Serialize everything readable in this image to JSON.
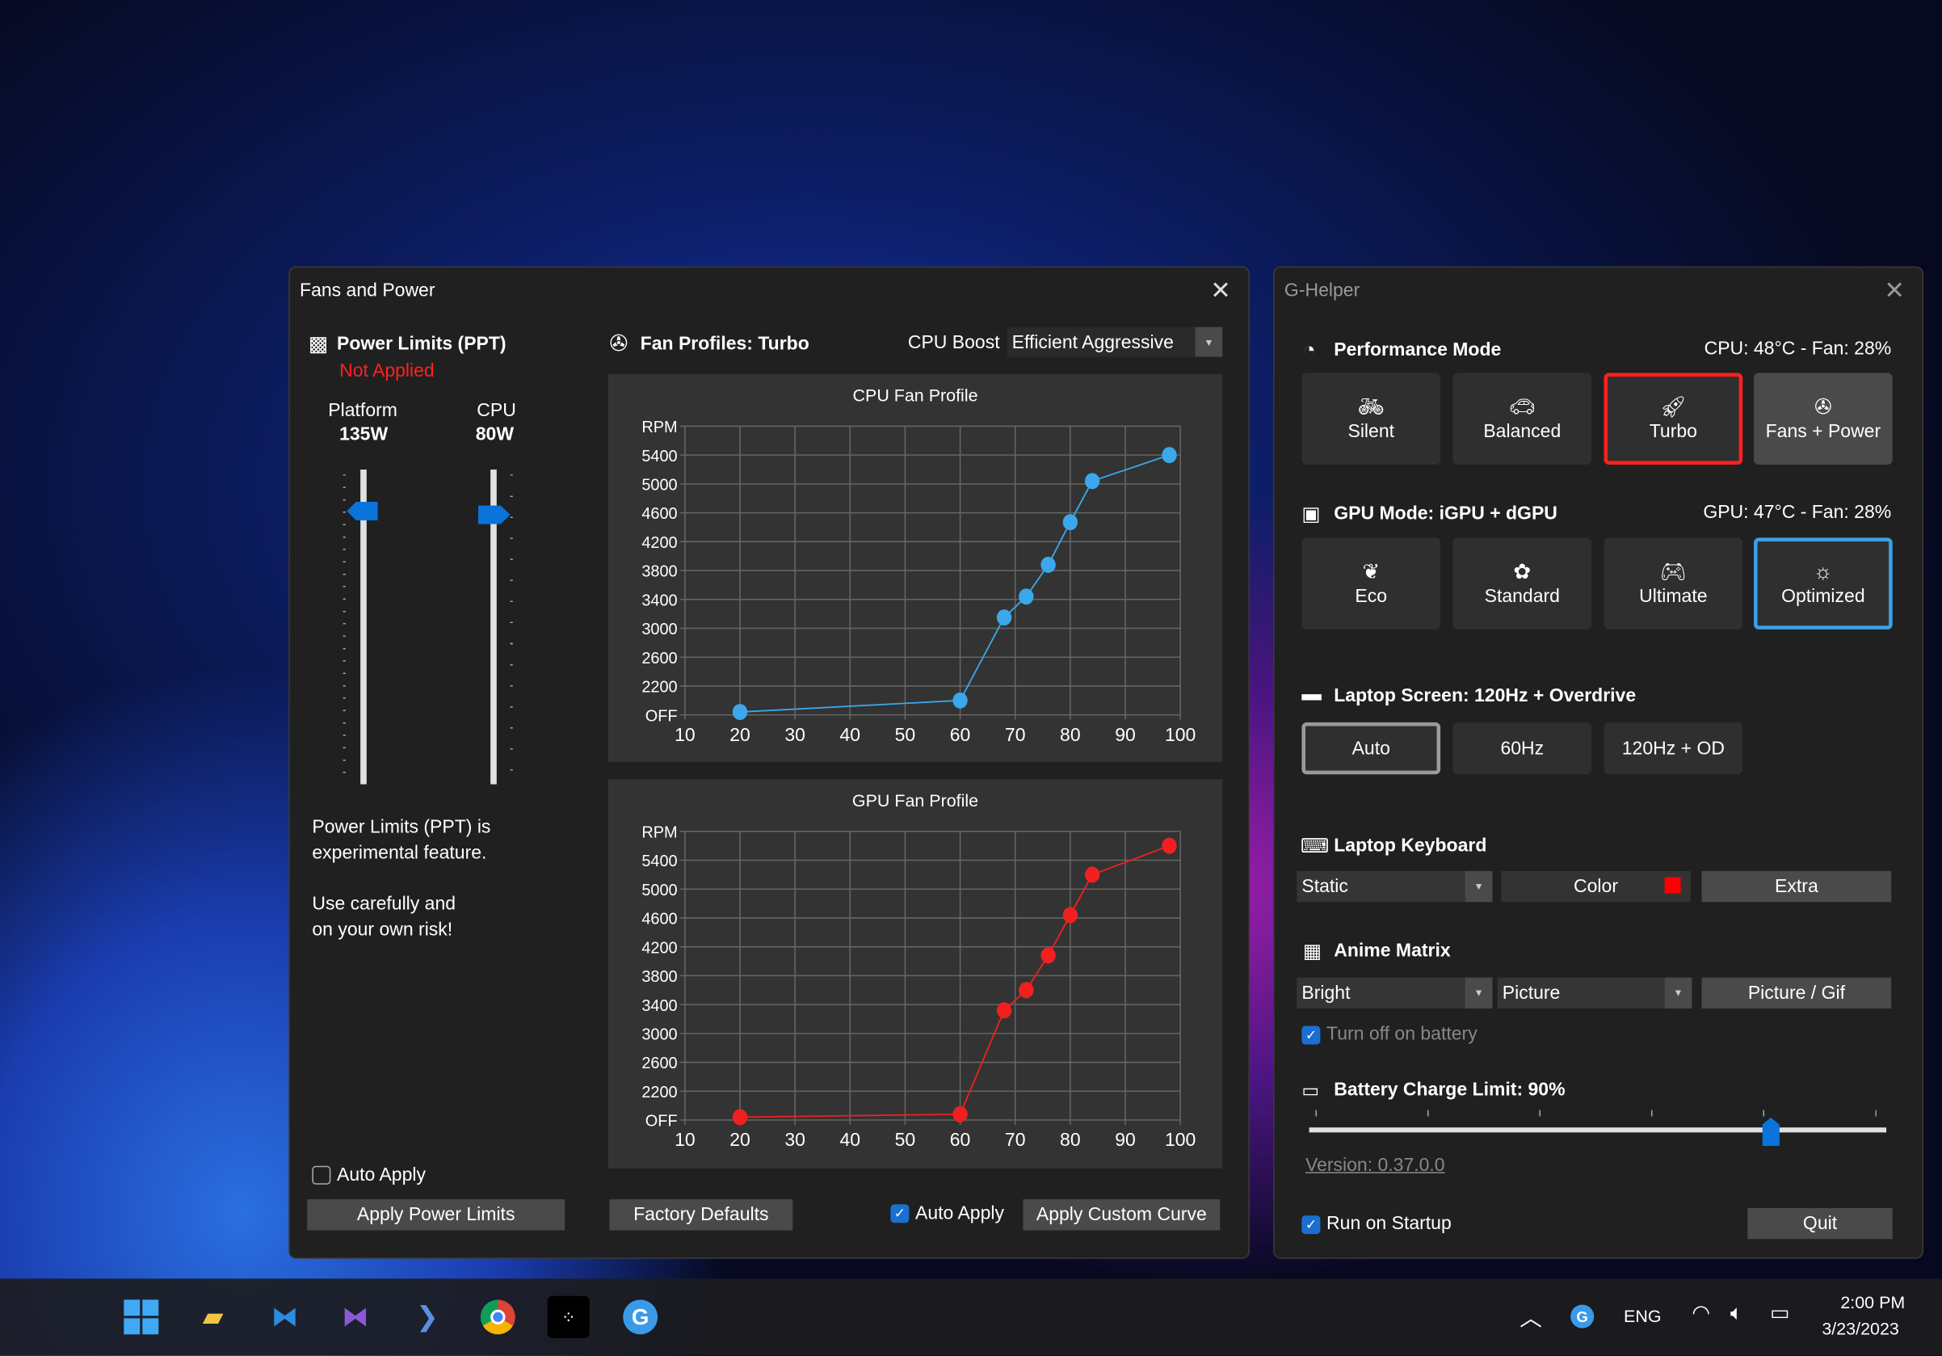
{
  "fans_window": {
    "title": "Fans and Power",
    "power": {
      "heading": "Power Limits (PPT)",
      "status": "Not Applied",
      "platform_label": "Platform",
      "platform_value": "135W",
      "cpu_label": "CPU",
      "cpu_value": "80W",
      "note1a": "Power Limits (PPT) is",
      "note1b": "experimental feature.",
      "note2a": "Use carefully and",
      "note2b": "on your own risk!",
      "auto_apply": "Auto Apply",
      "auto_apply_checked": false,
      "apply_button": "Apply Power Limits"
    },
    "fans": {
      "heading": "Fan Profiles: Turbo",
      "cpu_boost_label": "CPU Boost",
      "cpu_boost_value": "Efficient Aggressive",
      "factory_defaults": "Factory Defaults",
      "auto_apply": "Auto Apply",
      "auto_apply_checked": true,
      "apply_curve": "Apply Custom Curve"
    }
  },
  "chart_data": [
    {
      "type": "line",
      "title": "CPU Fan Profile",
      "ylabel": "RPM",
      "color": "#3aa8ea",
      "x": [
        20,
        60,
        68,
        72,
        76,
        80,
        84,
        98
      ],
      "y": [
        1840,
        2000,
        3150,
        3440,
        3880,
        4470,
        5040,
        5400
      ],
      "xlim": [
        10,
        100
      ],
      "xticks": [
        "10",
        "20",
        "30",
        "40",
        "50",
        "60",
        "70",
        "80",
        "90",
        "100"
      ],
      "ylim": [
        1800,
        5800
      ],
      "yticks": [
        "OFF",
        "2200",
        "2600",
        "3000",
        "3400",
        "3800",
        "4200",
        "4600",
        "5000",
        "5400",
        "RPM"
      ],
      "grid": true
    },
    {
      "type": "line",
      "title": "GPU Fan Profile",
      "ylabel": "RPM",
      "color": "#f02020",
      "x": [
        20,
        60,
        68,
        72,
        76,
        80,
        84,
        98
      ],
      "y": [
        1840,
        1880,
        3320,
        3600,
        4080,
        4640,
        5200,
        5600
      ],
      "xlim": [
        10,
        100
      ],
      "xticks": [
        "10",
        "20",
        "30",
        "40",
        "50",
        "60",
        "70",
        "80",
        "90",
        "100"
      ],
      "ylim": [
        1800,
        5800
      ],
      "yticks": [
        "OFF",
        "2200",
        "2600",
        "3000",
        "3400",
        "3800",
        "4200",
        "4600",
        "5000",
        "5400",
        "RPM"
      ],
      "grid": true
    }
  ],
  "ghelper": {
    "title": "G-Helper",
    "perf": {
      "heading": "Performance Mode",
      "stats": "CPU: 48°C -  Fan: 28%",
      "modes": [
        {
          "label": "Silent",
          "icon": "bicycle-icon"
        },
        {
          "label": "Balanced",
          "icon": "car-icon"
        },
        {
          "label": "Turbo",
          "icon": "rocket-icon"
        },
        {
          "label": "Fans + Power",
          "icon": "fan-icon"
        }
      ],
      "selected": "Turbo",
      "accent": "#ff2020"
    },
    "gpu": {
      "heading": "GPU Mode: iGPU + dGPU",
      "stats": "GPU: 47°C -  Fan: 28%",
      "modes": [
        {
          "label": "Eco",
          "icon": "leaf-icon"
        },
        {
          "label": "Standard",
          "icon": "flower-icon"
        },
        {
          "label": "Ultimate",
          "icon": "gamepad-icon"
        },
        {
          "label": "Optimized",
          "icon": "bulb-gear-icon"
        }
      ],
      "selected": "Optimized",
      "accent": "#3aa0e8"
    },
    "screen": {
      "heading": "Laptop Screen: 120Hz + Overdrive",
      "options": [
        "Auto",
        "60Hz",
        "120Hz + OD"
      ],
      "selected": "Auto"
    },
    "keyboard": {
      "heading": "Laptop Keyboard",
      "mode": "Static",
      "color_label": "Color",
      "color": "#ff0000",
      "extra": "Extra"
    },
    "matrix": {
      "heading": "Anime Matrix",
      "brightness": "Bright",
      "mode": "Picture",
      "picture_button": "Picture / Gif",
      "turn_off_battery": "Turn off on battery",
      "turn_off_checked": true
    },
    "battery": {
      "heading": "Battery Charge Limit: 90%",
      "limit_percent": 90,
      "range": [
        50,
        100
      ]
    },
    "version": "Version: 0.37.0.0",
    "run_on_startup": "Run on Startup",
    "run_on_startup_checked": true,
    "quit": "Quit"
  },
  "taskbar": {
    "apps": [
      "windows-start-icon",
      "file-explorer-icon",
      "vscode-icon",
      "visual-studio-icon",
      "powershell-icon",
      "chrome-icon",
      "tidal-icon",
      "ghelper-icon"
    ],
    "language": "ENG",
    "time": "2:00 PM",
    "date": "3/23/2023"
  }
}
